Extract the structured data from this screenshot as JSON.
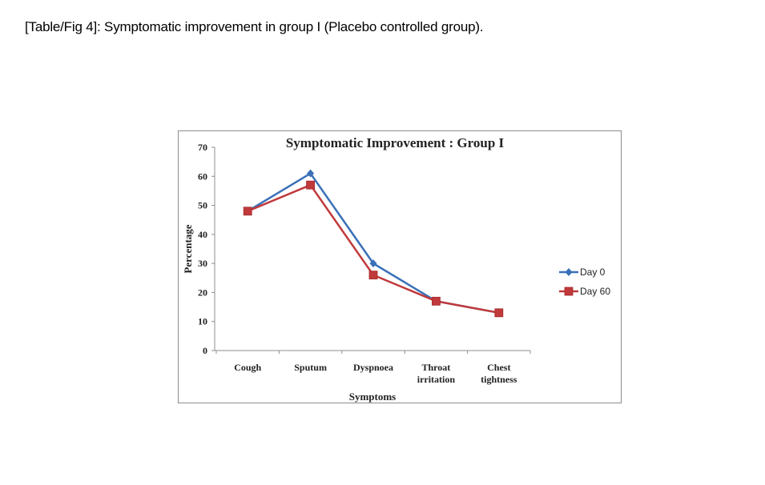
{
  "caption": "[Table/Fig 4]: Symptomatic improvement in group I (Placebo controlled group).",
  "chart_data": {
    "type": "line",
    "title": "Symptomatic Improvement : Group I",
    "xlabel": "Symptoms",
    "ylabel": "Percentage",
    "categories": [
      [
        "Cough"
      ],
      [
        "Sputum"
      ],
      [
        "Dyspnoea"
      ],
      [
        "Throat",
        "irritation"
      ],
      [
        "Chest",
        "tightness"
      ]
    ],
    "ylim": [
      0,
      70
    ],
    "yticks": [
      "0",
      "10",
      "20",
      "30",
      "40",
      "50",
      "60",
      "70"
    ],
    "grid": false,
    "legend_position": "right",
    "series": [
      {
        "name": "Day 0",
        "values": [
          48,
          61,
          30,
          17,
          13
        ],
        "color": "#3a70b8",
        "marker": "diamond"
      },
      {
        "name": "Day 60",
        "values": [
          48,
          57,
          26,
          17,
          13
        ],
        "color": "#c0393b",
        "marker": "square"
      }
    ]
  }
}
